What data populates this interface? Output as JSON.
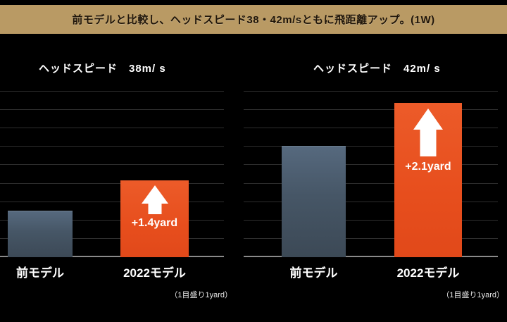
{
  "header": {
    "text": "前モデルと比較し、ヘッドスピード38・42m/sともに飛距離アップ。(1W)"
  },
  "colors": {
    "background": "#000000",
    "banner": "#B99A64",
    "banner_text": "#20160A",
    "bar_prev_model": "#465666",
    "bar_2022_model": "#E74E1D",
    "gridline": "#2E2E2E",
    "axis": "#8A8A8A",
    "label_text": "#FFFFFF"
  },
  "chart_data": [
    {
      "type": "bar",
      "title": "ヘッドスピード　38m/ s",
      "categories": [
        "前モデル",
        "2022モデル"
      ],
      "values": [
        2.5,
        3.9
      ],
      "annotation": "+1.4yard",
      "note": "（1目盛り1yard）",
      "ylim": [
        0,
        9
      ],
      "grid_step": 1,
      "grid_unit": "yard",
      "legend": "none",
      "grid": "on"
    },
    {
      "type": "bar",
      "title": "ヘッドスピード　42m/ s",
      "categories": [
        "前モデル",
        "2022モデル"
      ],
      "values": [
        6.0,
        8.1
      ],
      "annotation": "+2.1yard",
      "note": "（1目盛り1yard）",
      "ylim": [
        0,
        9
      ],
      "grid_step": 1,
      "grid_unit": "yard",
      "legend": "none",
      "grid": "on"
    }
  ]
}
